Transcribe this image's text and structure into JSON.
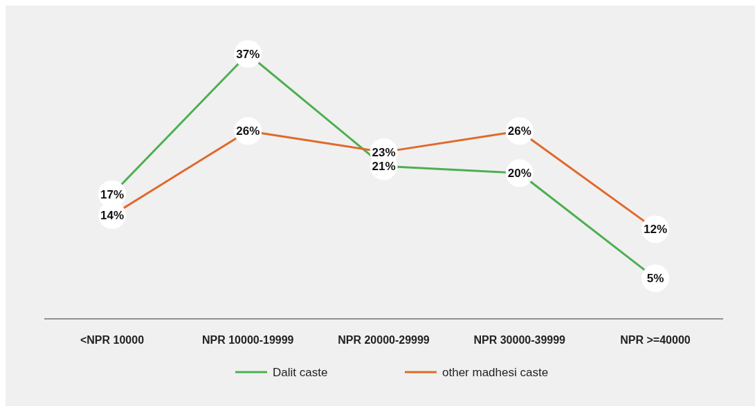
{
  "chart_data": {
    "type": "line",
    "categories": [
      "<NPR 10000",
      "NPR 10000-19999",
      "NPR 20000-29999",
      "NPR 30000-39999",
      "NPR >=40000"
    ],
    "series": [
      {
        "name": "Dalit caste",
        "color": "#4caf50",
        "values": [
          17,
          37,
          21,
          20,
          5
        ],
        "value_labels": [
          "17%",
          "37%",
          "21%",
          "20%",
          "5%"
        ]
      },
      {
        "name": "other madhesi caste",
        "color": "#e0692a",
        "values": [
          14,
          26,
          23,
          26,
          12
        ],
        "value_labels": [
          "14%",
          "26%",
          "23%",
          "26%",
          "12%"
        ]
      }
    ],
    "legend": "bottom",
    "grid": false,
    "marker": "circle"
  }
}
